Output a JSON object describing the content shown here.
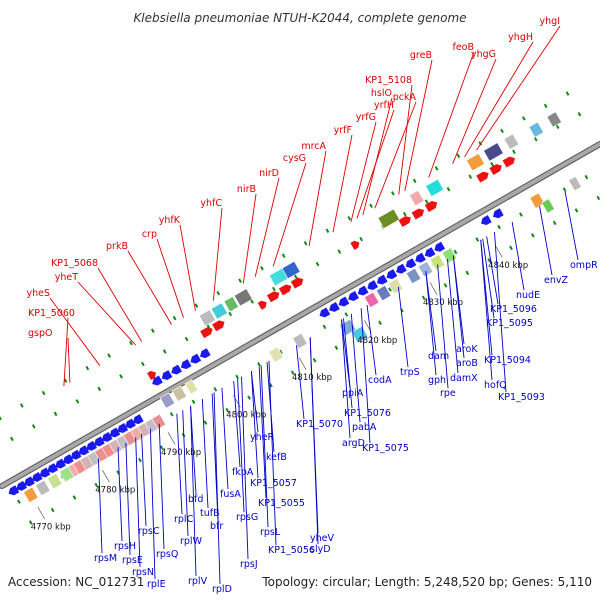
{
  "title": "Klebsiella pneumoniae NTUH-K2044, complete genome",
  "footer": {
    "accession": "Accession: NC_012731",
    "summary": "Topology: circular; Length: 5,248,520 bp; Genes: 5,110"
  },
  "colors": {
    "label_forward": "#dd0000",
    "label_reverse": "#0000cc",
    "strand_forward": "#ee1111",
    "strand_reverse": "#1a1aee",
    "backbone": "#8a8a8a",
    "tick": "#118811"
  },
  "scale_labels": [
    {
      "text": "4770 kbp",
      "pos": 0.03
    },
    {
      "text": "4780 kbp",
      "pos": 0.138
    },
    {
      "text": "4790 kbp",
      "pos": 0.248
    },
    {
      "text": "4800 kbp",
      "pos": 0.357
    },
    {
      "text": "4810 kbp",
      "pos": 0.467
    },
    {
      "text": "4820 kbp",
      "pos": 0.576
    },
    {
      "text": "4830 kbp",
      "pos": 0.686
    },
    {
      "text": "4840 kbp",
      "pos": 0.795
    }
  ],
  "forward_labels": [
    "gspO",
    "KP1_5060",
    "yheS",
    "yheT",
    "KP1_5068",
    "prkB",
    "crp",
    "yhfK",
    "yhfC",
    "nirB",
    "nirD",
    "cysG",
    "mrcA",
    "yrfF",
    "yrfG",
    "yrfH",
    "hslO",
    "pckA",
    "KP1_5108",
    "greB",
    "feoB",
    "yhgG",
    "yhgH",
    "yhgI"
  ],
  "reverse_labels": [
    "rpsM",
    "rpsH",
    "rpsE",
    "rpsN",
    "rplE",
    "rpsC",
    "rpsQ",
    "rplC",
    "rplW",
    "rplV",
    "rplD",
    "bfd",
    "tufB",
    "bfr",
    "fusA",
    "rpsG",
    "rpsJ",
    "rpsL",
    "KP1_5055",
    "KP1_5056",
    "KP1_5057",
    "fkpA",
    "slyD",
    "yheV",
    "kefB",
    "yheR",
    "KP1_5070",
    "argD",
    "pabA",
    "KP1_5076",
    "ppiA",
    "KP1_5075",
    "codA",
    "trpS",
    "gph",
    "rpe",
    "dam",
    "damX",
    "aroB",
    "aroK",
    "hofQ",
    "KP1_5093",
    "KP1_5094",
    "KP1_5095",
    "KP1_5096",
    "nudE",
    "envZ",
    "ompR"
  ]
}
